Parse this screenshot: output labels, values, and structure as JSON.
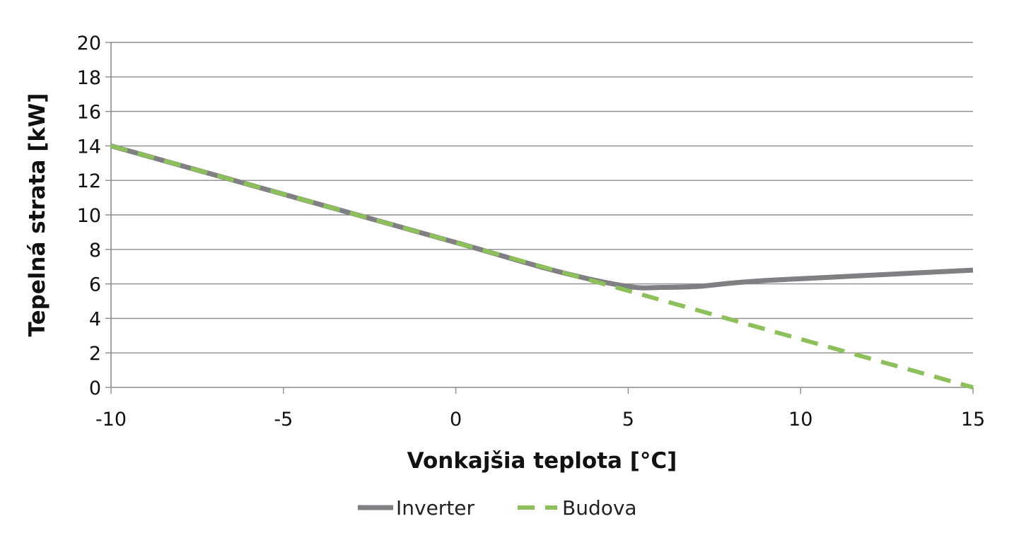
{
  "chart_data": {
    "type": "line",
    "title": "",
    "xlabel": "Vonkajšia teplota [°C]",
    "ylabel": "Tepelná strata [kW]",
    "xlim": [
      -10,
      15
    ],
    "ylim": [
      0,
      20
    ],
    "x_ticks": [
      -10,
      -5,
      0,
      5,
      10,
      15
    ],
    "y_ticks": [
      0,
      2,
      4,
      6,
      8,
      10,
      12,
      14,
      16,
      18,
      20
    ],
    "grid": "horizontal",
    "legend_position": "bottom",
    "series": [
      {
        "name": "Inverter",
        "style": "solid",
        "color": "#7f7f84",
        "x": [
          -10,
          -5,
          0,
          3,
          5,
          6,
          7,
          8,
          9,
          10,
          12,
          15
        ],
        "y": [
          14,
          11.2,
          8.4,
          6.7,
          5.85,
          5.8,
          5.85,
          6.05,
          6.2,
          6.3,
          6.5,
          6.8
        ]
      },
      {
        "name": "Budova",
        "style": "dashed",
        "color": "#8dc05a",
        "x": [
          -10,
          15
        ],
        "y": [
          14,
          0
        ]
      }
    ]
  }
}
